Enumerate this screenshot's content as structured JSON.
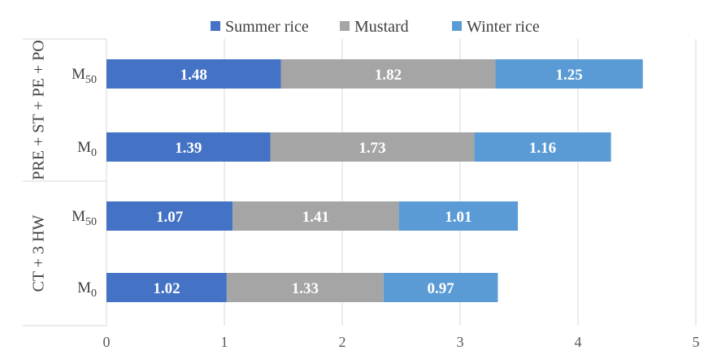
{
  "chart_data": {
    "type": "bar",
    "orientation": "horizontal",
    "stacked": true,
    "groups": [
      {
        "label": "PRE + ST + PE + PO",
        "categories": [
          {
            "label_main": "M",
            "label_sub": "50"
          },
          {
            "label_main": "M",
            "label_sub": "0"
          }
        ]
      },
      {
        "label": "CT + 3 HW",
        "categories": [
          {
            "label_main": "M",
            "label_sub": "50"
          },
          {
            "label_main": "M",
            "label_sub": "0"
          }
        ]
      }
    ],
    "series": [
      {
        "name": "Summer rice",
        "color": "#4472c4",
        "label_color": "#ffffff",
        "values": [
          1.48,
          1.39,
          1.07,
          1.02
        ]
      },
      {
        "name": "Mustard",
        "color": "#a5a5a5",
        "label_color": "#ffffff",
        "values": [
          1.82,
          1.73,
          1.41,
          1.33
        ]
      },
      {
        "name": "Winter rice",
        "color": "#5b9bd5",
        "label_color": "#ffffff",
        "values": [
          1.25,
          1.16,
          1.01,
          0.97
        ]
      }
    ],
    "xlim": [
      0,
      5
    ],
    "xticks": [
      0,
      1,
      2,
      3,
      4,
      5
    ],
    "grid": "vertical",
    "legend_position": "top"
  }
}
